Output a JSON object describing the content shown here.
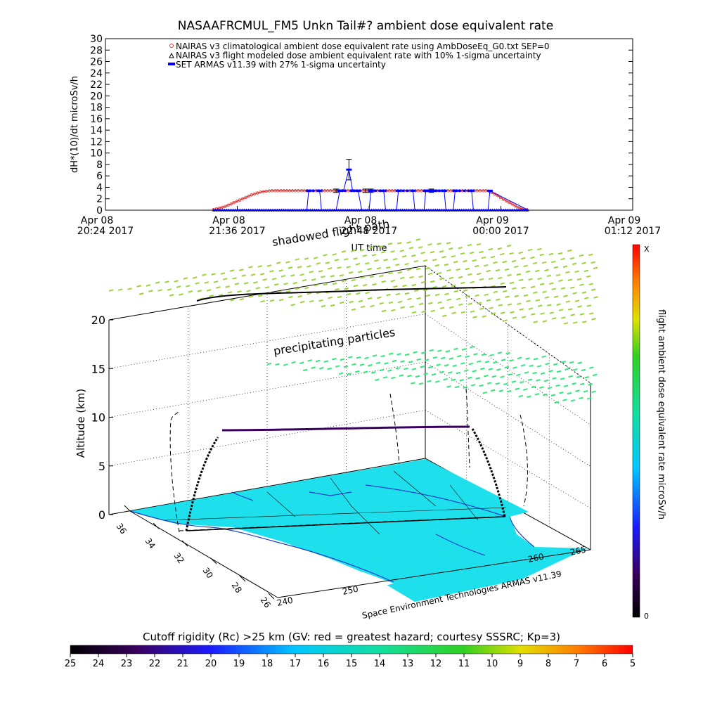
{
  "chart_data": [
    {
      "type": "line",
      "title": "NASAAFRCMUL_FM5 Unkn Tail#? ambient dose equivalent rate",
      "ylabel": "dH*(10)/dt microSv/h",
      "xlabel": "UT time",
      "ylim": [
        0,
        30
      ],
      "yticks": [
        "0",
        "2",
        "4",
        "6",
        "8",
        "10",
        "12",
        "14",
        "16",
        "18",
        "20",
        "22",
        "24",
        "26",
        "28",
        "30"
      ],
      "xticks": [
        {
          "t": 0,
          "line1": "Apr 08",
          "line2": "20:24 2017"
        },
        {
          "t": 72,
          "line1": "Apr 08",
          "line2": "21:36 2017"
        },
        {
          "t": 144,
          "line1": "Apr 08",
          "line2": "22:48 2017"
        },
        {
          "t": 216,
          "line1": "Apr 09",
          "line2": "00:00 2017"
        },
        {
          "t": 288,
          "line1": "Apr 09",
          "line2": "01:12 2017"
        }
      ],
      "xlim_minutes": [
        0,
        288
      ],
      "legend_position": "top-center",
      "series": [
        {
          "name": "NAIRAS v3 climatological ambient dose equivalent rate using AmbDoseEq_G0.txt SEP=0",
          "color": "#e03030",
          "x_minutes": [
            59,
            65,
            70,
            75,
            80,
            85,
            90,
            100,
            120,
            140,
            160,
            180,
            200,
            209,
            214,
            218,
            222,
            225,
            228,
            231
          ],
          "values": [
            0.1,
            0.6,
            1.3,
            2.0,
            2.7,
            3.2,
            3.4,
            3.4,
            3.4,
            3.4,
            3.4,
            3.4,
            3.4,
            3.4,
            2.6,
            1.8,
            1.1,
            0.5,
            0.2,
            0.05
          ]
        },
        {
          "name": "NAIRAS v3 flight modeled dose ambient equivalent rate with 10% 1-sigma uncertainty",
          "color": "#000000",
          "x_minutes": [
            59,
            231
          ],
          "values": [
            0,
            0
          ],
          "error_points": [
            {
              "x": 133,
              "value": 7.1,
              "err": 1.8
            },
            {
              "x": 126,
              "value": 3.4,
              "err": 0.3
            },
            {
              "x": 142,
              "value": 3.4,
              "err": 0.3
            },
            {
              "x": 145,
              "value": 3.4,
              "err": 0.3
            },
            {
              "x": 178,
              "value": 3.4,
              "err": 0.3
            }
          ]
        },
        {
          "name": "SET ARMAS v11.39 with 27% 1-sigma uncertainty",
          "color": "#0000ff",
          "x_minutes": [
            59,
            110,
            111,
            117,
            118,
            126,
            128,
            130,
            133,
            135,
            138,
            140,
            144,
            145,
            152,
            153,
            159,
            160,
            168,
            169,
            174,
            175,
            178,
            180,
            185,
            186,
            190,
            191,
            200,
            201,
            209,
            210,
            231
          ],
          "values": [
            0,
            0,
            3.4,
            3.4,
            0,
            0,
            3.4,
            3.4,
            7.1,
            3.4,
            3.4,
            0,
            0,
            3.4,
            3.4,
            0,
            0,
            3.4,
            3.4,
            0,
            0,
            3.4,
            3.4,
            3.4,
            3.4,
            0,
            0,
            3.4,
            3.4,
            0,
            0,
            3.4,
            0
          ]
        }
      ]
    },
    {
      "type": "scatter",
      "view": "3d",
      "zlabel": "Altitude (km)",
      "zlim": [
        0,
        20
      ],
      "zticks": [
        "0",
        "5",
        "10",
        "15",
        "20"
      ],
      "lat_ticks": [
        "36",
        "34",
        "32",
        "30",
        "28",
        "26"
      ],
      "lon_ticks": [
        "240",
        "250",
        "260",
        "265"
      ],
      "annotations": [
        "shadowed flight path",
        "precipitating particles"
      ],
      "footer": "Space Environment Technologies ARMAS v11.39",
      "flight_color": "#000000",
      "shadow_color": "#000000",
      "map_color": "#1ee0ec",
      "coast_color": "#1a40c8",
      "particle_color_top": "#9ad43a",
      "particle_color_low": "#2ee87a"
    }
  ],
  "colorbar_right": {
    "label": "flight ambient dose equivalent rate microSv/h",
    "max_label": "X",
    "min_label": "0"
  },
  "colorbar_bottom": {
    "title": "Cutoff rigidity (Rc) >25 km (GV: red = greatest hazard; courtesy SSSRC; Kp=3)",
    "ticks": [
      "25",
      "24",
      "23",
      "22",
      "21",
      "20",
      "19",
      "18",
      "17",
      "16",
      "15",
      "14",
      "13",
      "12",
      "11",
      "10",
      "9",
      "8",
      "7",
      "6",
      "5"
    ]
  }
}
